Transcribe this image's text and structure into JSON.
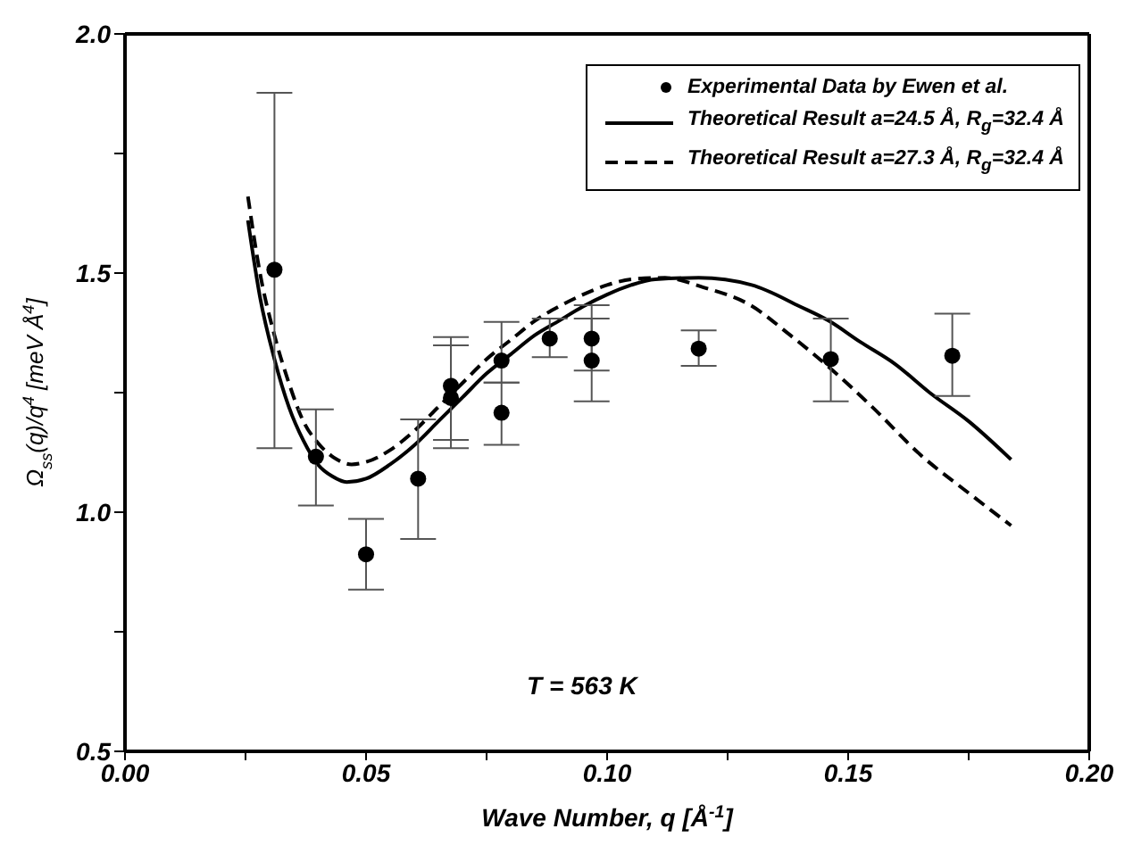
{
  "chart_data": {
    "type": "scatter",
    "xlabel": "Wave Number, q [Å$^{-1}$]",
    "ylabel": "Ω$_{ss}$(q)/q$^{4}$ [meV Å$^{4}$]",
    "annotations": [
      "T = 563 K"
    ],
    "xlim": [
      0,
      0.2
    ],
    "xticks": [
      {
        "value": 0,
        "label": "0.00"
      },
      {
        "value": 0.025,
        "label": null
      },
      {
        "value": 0.05,
        "label": "0.05"
      },
      {
        "value": 0.075,
        "label": null
      },
      {
        "value": 0.1,
        "label": "0.10"
      },
      {
        "value": 0.125,
        "label": null
      },
      {
        "value": 0.15,
        "label": "0.15"
      },
      {
        "value": 0.175,
        "label": null
      },
      {
        "value": 0.2,
        "label": "0.20"
      }
    ],
    "ylim": [
      0.5,
      2.0
    ],
    "yticks": [
      {
        "value": 0.5,
        "label": "0.5"
      },
      {
        "value": 0.75,
        "label": null
      },
      {
        "value": 1.0,
        "label": "1.0"
      },
      {
        "value": 1.25,
        "label": null
      },
      {
        "value": 1.5,
        "label": "1.5"
      },
      {
        "value": 1.75,
        "label": null
      },
      {
        "value": 2.0,
        "label": "2.0"
      }
    ],
    "grid": false,
    "legend": "top right",
    "series": [
      {
        "name": "Experimental Data by  Ewen et al.",
        "color": "#000000",
        "marker": "circle",
        "x": [
          0.031,
          0.0396,
          0.05,
          0.0608,
          0.0676,
          0.0676,
          0.0781,
          0.0781,
          0.0881,
          0.0968,
          0.0968,
          0.119,
          0.1464,
          0.1716
        ],
        "values": [
          1.507,
          1.116,
          0.912,
          1.07,
          1.264,
          1.239,
          1.317,
          1.208,
          1.363,
          1.363,
          1.317,
          1.342,
          1.32,
          1.327
        ],
        "errors": [
          [
            1.134,
            1.877
          ],
          [
            1.014,
            1.215
          ],
          [
            0.838,
            0.986
          ],
          [
            0.944,
            1.194
          ],
          [
            1.151,
            1.366
          ],
          [
            1.134,
            1.349
          ],
          [
            1.271,
            1.398
          ],
          [
            1.141,
            1.271
          ],
          [
            1.324,
            1.405
          ],
          [
            1.296,
            1.433
          ],
          [
            1.232,
            1.405
          ],
          [
            1.306,
            1.38
          ],
          [
            1.232,
            1.405
          ],
          [
            1.243,
            1.415
          ]
        ]
      },
      {
        "name": "Theoretical Result a=24.5 Å, R$_{g}$=32.4 Å",
        "type": "line",
        "color": "#000000",
        "line_style": "solid",
        "marker": "none",
        "x": [
          0.0255,
          0.028,
          0.031,
          0.034,
          0.037,
          0.04,
          0.043,
          0.046,
          0.05,
          0.055,
          0.06,
          0.065,
          0.07,
          0.075,
          0.08,
          0.085,
          0.09,
          0.095,
          0.1,
          0.105,
          0.11,
          0.119,
          0.13,
          0.14,
          0.146,
          0.1525,
          0.1597,
          0.1669,
          0.175,
          0.1838
        ],
        "values": [
          1.61,
          1.45,
          1.32,
          1.22,
          1.15,
          1.1,
          1.075,
          1.063,
          1.07,
          1.1,
          1.14,
          1.19,
          1.24,
          1.29,
          1.33,
          1.37,
          1.4,
          1.43,
          1.455,
          1.475,
          1.487,
          1.49,
          1.475,
          1.43,
          1.4,
          1.356,
          1.31,
          1.25,
          1.19,
          1.11
        ]
      },
      {
        "name": "Theoretical Result a=27.3 Å, R$_{g}$=32.4 Å",
        "type": "line",
        "color": "#000000",
        "line_style": "dashed",
        "marker": "none",
        "x": [
          0.0255,
          0.028,
          0.031,
          0.034,
          0.037,
          0.04,
          0.044,
          0.047,
          0.05,
          0.055,
          0.06,
          0.065,
          0.07,
          0.075,
          0.08,
          0.085,
          0.09,
          0.095,
          0.1,
          0.106,
          0.112,
          0.12,
          0.1297,
          0.138,
          0.1464,
          0.155,
          0.165,
          0.175,
          0.1838
        ],
        "values": [
          1.66,
          1.5,
          1.37,
          1.27,
          1.19,
          1.145,
          1.11,
          1.1,
          1.105,
          1.13,
          1.17,
          1.22,
          1.27,
          1.32,
          1.36,
          1.4,
          1.43,
          1.455,
          1.475,
          1.488,
          1.49,
          1.47,
          1.433,
          1.37,
          1.3,
          1.22,
          1.12,
          1.04,
          0.972
        ]
      }
    ]
  }
}
